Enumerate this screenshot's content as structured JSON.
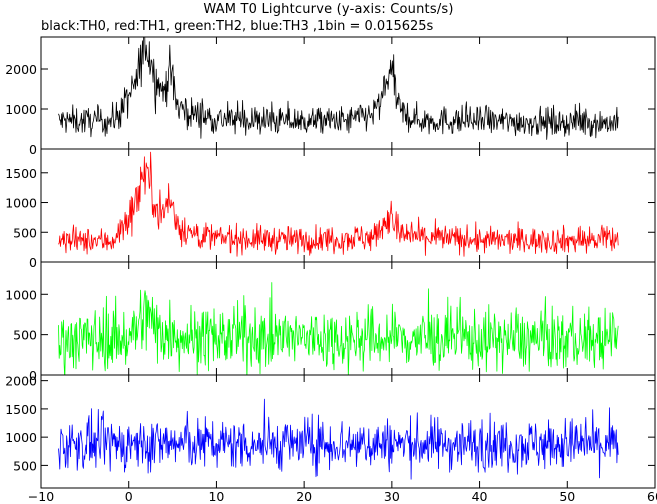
{
  "header": {
    "title": "WAM T0 Lightcurve (y-axis: Counts/s)",
    "subtitle": "black:TH0, red:TH1, green:TH2, blue:TH3 ,1bin = 0.015625s"
  },
  "chart_data": {
    "type": "line",
    "title": "WAM T0 Lightcurve (y-axis: Counts/s)",
    "subtitle": "black:TH0, red:TH1, green:TH2, blue:TH3 ,1bin = 0.015625s",
    "bin_size_s": 0.015625,
    "xlim": [
      -10,
      60
    ],
    "x_ticks": [
      -10,
      0,
      10,
      20,
      30,
      40,
      50,
      60
    ],
    "x_tick_labels": [
      "−10",
      "0",
      "10",
      "20",
      "30",
      "40",
      "50",
      "60"
    ],
    "x_range_of_data": [
      -8,
      55.8
    ],
    "grid": false,
    "panels": [
      {
        "name": "TH0",
        "color": "#000000",
        "ylim": [
          0,
          2800
        ],
        "y_ticks": [
          0,
          1000,
          2000
        ],
        "y_tick_labels": [
          "0",
          "1000",
          "2000"
        ],
        "baseline": 700,
        "noise": 180,
        "points": [
          [
            -8,
            700
          ],
          [
            -2,
            700
          ],
          [
            -1,
            900
          ],
          [
            0,
            1300
          ],
          [
            0.8,
            1600
          ],
          [
            1.5,
            2300
          ],
          [
            1.8,
            2700
          ],
          [
            2.3,
            2400
          ],
          [
            3,
            1800
          ],
          [
            4,
            1400
          ],
          [
            4.6,
            2000
          ],
          [
            5,
            1700
          ],
          [
            5.5,
            1100
          ],
          [
            7,
            900
          ],
          [
            10,
            750
          ],
          [
            15,
            700
          ],
          [
            25,
            700
          ],
          [
            28,
            900
          ],
          [
            29.3,
            1400
          ],
          [
            29.8,
            2200
          ],
          [
            30.3,
            1500
          ],
          [
            31,
            900
          ],
          [
            33,
            720
          ],
          [
            45,
            680
          ],
          [
            55.8,
            650
          ]
        ]
      },
      {
        "name": "TH1",
        "color": "#ff0000",
        "ylim": [
          0,
          1900
        ],
        "y_ticks": [
          0,
          500,
          1000,
          1500
        ],
        "y_tick_labels": [
          "0",
          "500",
          "1000",
          "1500"
        ],
        "baseline": 350,
        "noise": 110,
        "points": [
          [
            -8,
            350
          ],
          [
            -2,
            350
          ],
          [
            -1,
            500
          ],
          [
            0,
            750
          ],
          [
            1,
            1100
          ],
          [
            1.8,
            1600
          ],
          [
            2.5,
            1300
          ],
          [
            3,
            1000
          ],
          [
            4,
            800
          ],
          [
            4.6,
            1100
          ],
          [
            5.5,
            650
          ],
          [
            7,
            480
          ],
          [
            10,
            400
          ],
          [
            20,
            370
          ],
          [
            28,
            420
          ],
          [
            29.8,
            800
          ],
          [
            31,
            450
          ],
          [
            40,
            360
          ],
          [
            55.8,
            370
          ]
        ]
      },
      {
        "name": "TH2",
        "color": "#00ff00",
        "ylim": [
          0,
          1400
        ],
        "y_ticks": [
          0,
          500,
          1000
        ],
        "y_tick_labels": [
          "0",
          "500",
          "1000"
        ],
        "baseline": 440,
        "noise": 190,
        "points": [
          [
            -8,
            440
          ],
          [
            0,
            460
          ],
          [
            1,
            600
          ],
          [
            2,
            750
          ],
          [
            3,
            600
          ],
          [
            5,
            500
          ],
          [
            8,
            460
          ],
          [
            30,
            450
          ],
          [
            55.8,
            430
          ]
        ]
      },
      {
        "name": "TH3",
        "color": "#0000ff",
        "ylim": [
          100,
          2100
        ],
        "y_ticks": [
          500,
          1000,
          1500,
          2000
        ],
        "y_tick_labels": [
          "500",
          "1000",
          "1500",
          "2000"
        ],
        "baseline": 880,
        "noise": 230,
        "points": [
          [
            -8,
            880
          ],
          [
            20,
            880
          ],
          [
            40,
            880
          ],
          [
            55.8,
            870
          ]
        ]
      }
    ]
  }
}
